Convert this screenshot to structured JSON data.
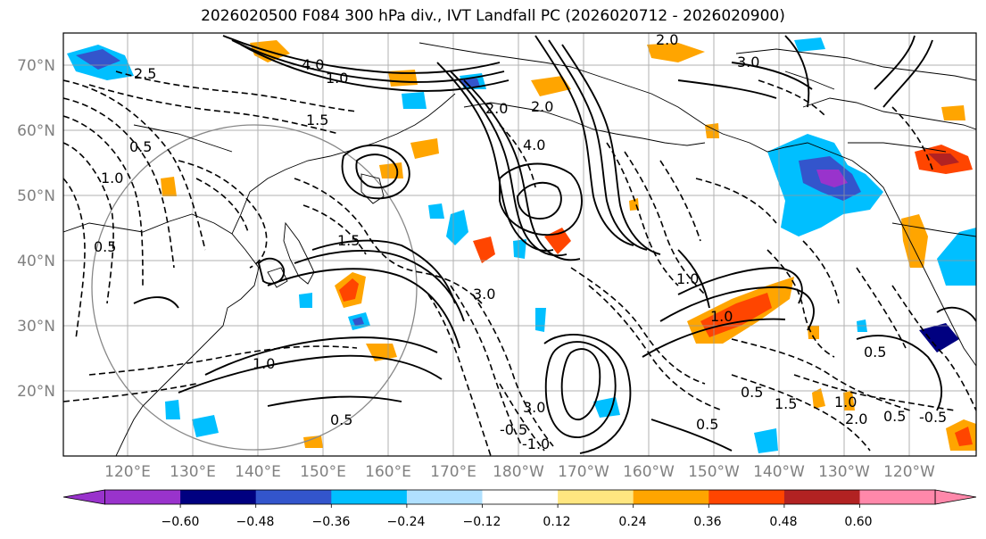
{
  "title": "2026020500 F084 300 hPa div., IVT Landfall PC (2026020712 - 2026020900)",
  "lat_labels": [
    "70°N",
    "60°N",
    "50°N",
    "40°N",
    "30°N",
    "20°N"
  ],
  "lon_labels": [
    "120°E",
    "130°E",
    "140°E",
    "150°E",
    "160°E",
    "170°E",
    "180°W",
    "170°W",
    "160°W",
    "150°W",
    "140°W",
    "130°W",
    "120°W"
  ],
  "colorbar": {
    "colors": [
      "#9933cc",
      "#000080",
      "#3355cc",
      "#00bfff",
      "#b0e0ff",
      "#ffffff",
      "#ffe680",
      "#ffa500",
      "#ff4500",
      "#b22222",
      "#ff88aa"
    ],
    "tick_labels": [
      "−0.60",
      "−0.48",
      "−0.36",
      "−0.24",
      "−0.12",
      "0.12",
      "0.24",
      "0.36",
      "0.48",
      "0.60"
    ]
  },
  "contour_labels": [
    {
      "text": "2.0"
    },
    {
      "text": "4.0"
    },
    {
      "text": "1.5"
    },
    {
      "text": "1.0"
    },
    {
      "text": "0.5"
    },
    {
      "text": "2.5"
    },
    {
      "text": "3.0"
    },
    {
      "text": "0.5"
    },
    {
      "text": "1.5"
    },
    {
      "text": "2.0"
    },
    {
      "text": "1.0"
    },
    {
      "text": "0.5"
    },
    {
      "text": "3.0"
    },
    {
      "text": "1.0"
    },
    {
      "text": "1.0"
    },
    {
      "text": "0.5"
    },
    {
      "text": "1.0"
    },
    {
      "text": "0.5"
    },
    {
      "text": "2.0"
    },
    {
      "text": "-0.5"
    },
    {
      "text": "1.0"
    },
    {
      "text": "0.5"
    },
    {
      "text": "0.5"
    },
    {
      "text": "-0.5"
    },
    {
      "text": "3.0"
    },
    {
      "text": "1.5"
    },
    {
      "text": "2.0"
    },
    {
      "text": "4.0"
    },
    {
      "text": "-1.0"
    }
  ]
}
